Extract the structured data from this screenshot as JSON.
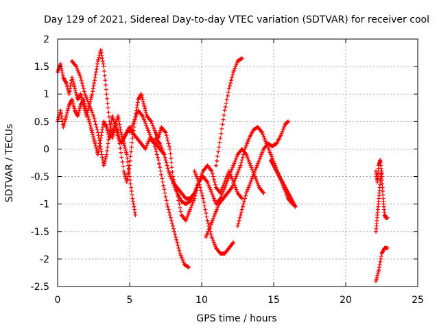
{
  "chart_data": {
    "type": "scatter",
    "title": "Day 129 of 2021, Sidereal Day-to-day VTEC variation (SDTVAR) for receiver cool",
    "xlabel": "GPS time / hours",
    "ylabel": "SDTVAR / TECUs",
    "xlim": [
      0,
      25
    ],
    "ylim": [
      -2.5,
      2
    ],
    "xticks": [
      0,
      5,
      10,
      15,
      20,
      25
    ],
    "xtick_labels": [
      "0",
      "5",
      "10",
      "15",
      "20",
      "25"
    ],
    "yticks": [
      -2.5,
      -2,
      -1.5,
      -1,
      -0.5,
      0,
      0.5,
      1,
      1.5,
      2
    ],
    "ytick_labels": [
      "-2.5",
      "-2",
      "-1.5",
      "-1",
      "-0.5",
      "0",
      "0.5",
      "1",
      "1.5",
      "2"
    ],
    "grid": true,
    "marker": "+",
    "color": "#ff0000",
    "series": [
      {
        "name": "s1",
        "points": [
          [
            0,
            1.4
          ],
          [
            0.2,
            1.55
          ],
          [
            0.4,
            1.3
          ],
          [
            0.6,
            1.2
          ],
          [
            0.8,
            1.0
          ],
          [
            1.0,
            1.3
          ],
          [
            1.2,
            1.1
          ],
          [
            1.4,
            0.9
          ],
          [
            1.6,
            1.0
          ],
          [
            1.8,
            0.8
          ],
          [
            2.0,
            0.6
          ],
          [
            2.2,
            0.8
          ],
          [
            2.4,
            1.0
          ],
          [
            2.6,
            1.3
          ],
          [
            2.8,
            1.6
          ],
          [
            3.0,
            1.8
          ],
          [
            3.2,
            1.5
          ],
          [
            3.4,
            1.0
          ],
          [
            3.6,
            0.5
          ],
          [
            3.8,
            0.2
          ],
          [
            4.0,
            0.4
          ],
          [
            4.2,
            0.6
          ],
          [
            4.4,
            0.3
          ],
          [
            4.6,
            0.1
          ],
          [
            4.8,
            -0.1
          ],
          [
            5.0,
            -0.5
          ],
          [
            5.2,
            -0.9
          ],
          [
            5.4,
            -1.2
          ]
        ]
      },
      {
        "name": "s2",
        "points": [
          [
            1.0,
            1.6
          ],
          [
            1.3,
            1.5
          ],
          [
            1.6,
            1.3
          ],
          [
            1.9,
            1.0
          ],
          [
            2.2,
            0.8
          ],
          [
            2.5,
            0.6
          ],
          [
            2.8,
            0.3
          ],
          [
            3.0,
            0.0
          ],
          [
            3.2,
            -0.3
          ],
          [
            3.4,
            -0.1
          ],
          [
            3.6,
            0.3
          ],
          [
            3.8,
            0.6
          ],
          [
            4.0,
            0.4
          ],
          [
            4.3,
            0.1
          ],
          [
            4.6,
            -0.4
          ],
          [
            4.8,
            -0.6
          ],
          [
            5.0,
            -0.3
          ],
          [
            5.2,
            0.2
          ],
          [
            5.4,
            0.6
          ],
          [
            5.6,
            0.9
          ],
          [
            5.8,
            1.0
          ],
          [
            6.0,
            0.8
          ],
          [
            6.2,
            0.6
          ],
          [
            6.5,
            0.5
          ],
          [
            6.8,
            0.3
          ],
          [
            7.0,
            0.2
          ],
          [
            7.2,
            0.4
          ],
          [
            7.5,
            0.3
          ],
          [
            7.8,
            0.0
          ],
          [
            8.0,
            -0.5
          ],
          [
            8.3,
            -0.8
          ],
          [
            8.6,
            -1.2
          ],
          [
            8.9,
            -1.3
          ],
          [
            9.2,
            -1.1
          ],
          [
            9.5,
            -0.9
          ],
          [
            9.8,
            -0.6
          ]
        ]
      },
      {
        "name": "s3",
        "points": [
          [
            0,
            0.5
          ],
          [
            0.2,
            0.7
          ],
          [
            0.4,
            0.4
          ],
          [
            0.6,
            0.6
          ],
          [
            0.8,
            0.8
          ],
          [
            1.0,
            0.9
          ],
          [
            1.2,
            0.7
          ],
          [
            1.4,
            0.6
          ],
          [
            1.6,
            0.8
          ],
          [
            1.8,
            0.9
          ],
          [
            2.0,
            0.7
          ],
          [
            2.2,
            0.5
          ],
          [
            2.4,
            0.3
          ],
          [
            2.6,
            0.1
          ],
          [
            2.8,
            -0.1
          ],
          [
            3.0,
            0.2
          ],
          [
            3.2,
            0.5
          ],
          [
            3.4,
            0.4
          ],
          [
            3.6,
            0.2
          ],
          [
            3.8,
            0.3
          ],
          [
            4.0,
            0.5
          ],
          [
            4.2,
            0.3
          ],
          [
            4.4,
            0.1
          ],
          [
            4.6,
            0.2
          ],
          [
            4.8,
            0.3
          ],
          [
            5.0,
            0.4
          ],
          [
            5.2,
            0.3
          ],
          [
            5.5,
            0.2
          ],
          [
            5.8,
            0.1
          ],
          [
            6.1,
            0.0
          ],
          [
            6.4,
            0.2
          ],
          [
            6.7,
            0.1
          ],
          [
            7.0,
            -0.2
          ],
          [
            7.3,
            -0.6
          ],
          [
            7.6,
            -1.0
          ],
          [
            7.9,
            -1.3
          ],
          [
            8.2,
            -1.6
          ],
          [
            8.5,
            -1.9
          ],
          [
            8.8,
            -2.1
          ],
          [
            9.1,
            -2.15
          ]
        ]
      },
      {
        "name": "s4",
        "points": [
          [
            5.0,
            0.3
          ],
          [
            5.3,
            0.5
          ],
          [
            5.6,
            0.7
          ],
          [
            5.9,
            0.6
          ],
          [
            6.2,
            0.4
          ],
          [
            6.5,
            0.2
          ],
          [
            6.8,
            0.1
          ],
          [
            7.1,
            0.0
          ],
          [
            7.4,
            -0.1
          ],
          [
            7.7,
            -0.4
          ],
          [
            8.0,
            -0.6
          ],
          [
            8.3,
            -0.7
          ],
          [
            8.6,
            -0.8
          ],
          [
            8.9,
            -0.9
          ],
          [
            9.2,
            -0.9
          ],
          [
            9.5,
            -0.8
          ],
          [
            9.8,
            -0.6
          ],
          [
            10.1,
            -0.4
          ],
          [
            10.4,
            -0.3
          ],
          [
            10.7,
            -0.4
          ],
          [
            11.0,
            -0.7
          ],
          [
            11.3,
            -0.8
          ],
          [
            11.6,
            -0.6
          ],
          [
            11.9,
            -0.4
          ],
          [
            12.2,
            -0.6
          ],
          [
            12.5,
            -0.8
          ],
          [
            12.8,
            -0.9
          ]
        ]
      },
      {
        "name": "s5",
        "points": [
          [
            6.8,
            0.2
          ],
          [
            7.1,
            0.1
          ],
          [
            7.4,
            -0.1
          ],
          [
            7.7,
            -0.4
          ],
          [
            8.0,
            -0.6
          ],
          [
            8.3,
            -0.8
          ],
          [
            8.6,
            -0.95
          ],
          [
            8.9,
            -1.0
          ],
          [
            9.2,
            -0.95
          ],
          [
            9.5,
            -0.8
          ],
          [
            9.8,
            -0.6
          ],
          [
            10.1,
            -0.5
          ],
          [
            10.4,
            -0.6
          ],
          [
            10.7,
            -0.8
          ],
          [
            11.0,
            -1.0
          ],
          [
            11.3,
            -0.9
          ],
          [
            11.6,
            -0.7
          ],
          [
            11.9,
            -0.5
          ],
          [
            12.2,
            -0.3
          ],
          [
            12.5,
            -0.1
          ],
          [
            12.8,
            0.0
          ],
          [
            13.1,
            -0.1
          ],
          [
            13.4,
            -0.3
          ],
          [
            13.7,
            -0.5
          ],
          [
            14.0,
            -0.7
          ],
          [
            14.3,
            -0.8
          ]
        ]
      },
      {
        "name": "s6",
        "points": [
          [
            9.5,
            -0.4
          ],
          [
            9.8,
            -0.6
          ],
          [
            10.1,
            -0.9
          ],
          [
            10.4,
            -1.3
          ],
          [
            10.7,
            -1.6
          ],
          [
            11.0,
            -1.8
          ],
          [
            11.3,
            -1.9
          ],
          [
            11.6,
            -1.9
          ],
          [
            11.9,
            -1.8
          ],
          [
            12.2,
            -1.7
          ]
        ]
      },
      {
        "name": "s7",
        "points": [
          [
            10.3,
            -1.6
          ],
          [
            10.6,
            -1.4
          ],
          [
            10.9,
            -1.2
          ],
          [
            11.2,
            -1.0
          ],
          [
            11.5,
            -0.9
          ],
          [
            11.8,
            -0.8
          ],
          [
            12.1,
            -0.7
          ],
          [
            12.4,
            -0.5
          ],
          [
            12.7,
            -0.3
          ],
          [
            13.0,
            0.0
          ],
          [
            13.3,
            0.2
          ],
          [
            13.6,
            0.35
          ],
          [
            13.9,
            0.4
          ],
          [
            14.2,
            0.3
          ],
          [
            14.5,
            0.1
          ],
          [
            14.8,
            -0.1
          ],
          [
            15.1,
            -0.3
          ],
          [
            15.4,
            -0.5
          ],
          [
            15.7,
            -0.7
          ],
          [
            16.0,
            -0.9
          ],
          [
            16.3,
            -1.0
          ]
        ]
      },
      {
        "name": "s8",
        "points": [
          [
            11.0,
            -0.3
          ],
          [
            11.3,
            0.2
          ],
          [
            11.6,
            0.7
          ],
          [
            11.9,
            1.1
          ],
          [
            12.2,
            1.4
          ],
          [
            12.5,
            1.6
          ],
          [
            12.8,
            1.65
          ]
        ]
      },
      {
        "name": "s9",
        "points": [
          [
            12.5,
            -1.4
          ],
          [
            12.8,
            -1.1
          ],
          [
            13.1,
            -0.8
          ],
          [
            13.4,
            -0.6
          ],
          [
            13.7,
            -0.4
          ],
          [
            14.0,
            -0.2
          ],
          [
            14.3,
            0.0
          ],
          [
            14.6,
            0.1
          ],
          [
            14.9,
            0.05
          ],
          [
            15.2,
            0.1
          ],
          [
            15.5,
            0.25
          ],
          [
            15.8,
            0.45
          ],
          [
            16.0,
            0.5
          ]
        ]
      },
      {
        "name": "s10",
        "points": [
          [
            14.8,
            -0.2
          ],
          [
            15.0,
            -0.3
          ],
          [
            15.2,
            -0.4
          ],
          [
            15.4,
            -0.5
          ],
          [
            15.6,
            -0.6
          ],
          [
            15.8,
            -0.7
          ],
          [
            16.0,
            -0.8
          ],
          [
            16.2,
            -0.9
          ],
          [
            16.4,
            -1.0
          ],
          [
            16.5,
            -1.05
          ]
        ]
      },
      {
        "name": "s11",
        "points": [
          [
            22.1,
            -0.4
          ],
          [
            22.2,
            -0.6
          ],
          [
            22.3,
            -0.3
          ],
          [
            22.4,
            -0.2
          ],
          [
            22.5,
            -0.5
          ],
          [
            22.6,
            -0.9
          ],
          [
            22.7,
            -1.2
          ],
          [
            22.8,
            -1.25
          ],
          [
            22.9,
            -1.25
          ]
        ]
      },
      {
        "name": "s12",
        "points": [
          [
            22.1,
            -1.5
          ],
          [
            22.2,
            -1.2
          ],
          [
            22.3,
            -0.9
          ],
          [
            22.4,
            -0.6
          ],
          [
            22.5,
            -0.4
          ]
        ]
      },
      {
        "name": "s13",
        "points": [
          [
            22.1,
            -2.4
          ],
          [
            22.3,
            -2.2
          ],
          [
            22.5,
            -1.9
          ],
          [
            22.7,
            -1.8
          ],
          [
            22.9,
            -1.8
          ]
        ]
      }
    ]
  }
}
